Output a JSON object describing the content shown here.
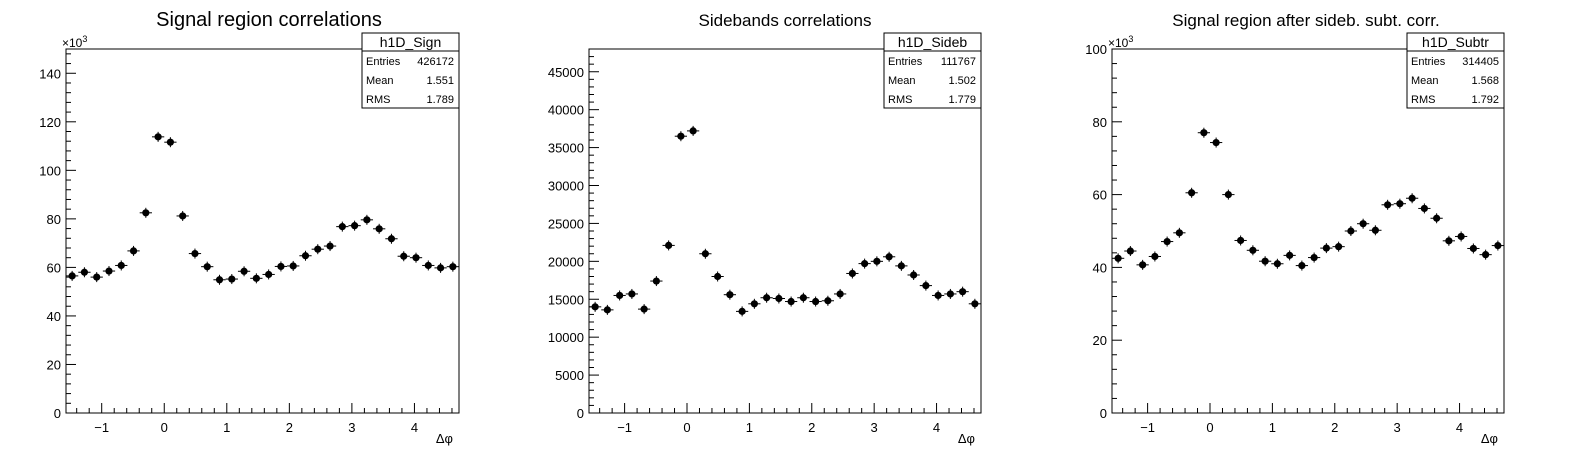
{
  "chart_data": [
    {
      "type": "scatter",
      "title": "Signal region correlations",
      "xlabel": "Δφ",
      "ylabel": "",
      "xlim": [
        -1.5708,
        4.7124
      ],
      "ylim": [
        0,
        150000
      ],
      "x_ticks": [
        -1,
        0,
        1,
        2,
        3,
        4
      ],
      "y_ticks": [
        0,
        20000,
        40000,
        60000,
        80000,
        100000,
        120000,
        140000
      ],
      "y_tick_labels": [
        "0",
        "20",
        "40",
        "60",
        "80",
        "100",
        "120",
        "140"
      ],
      "y_exponent_label": "×10",
      "y_exponent_power": "3",
      "stats": {
        "name": "h1D_Sign",
        "entries_label": "Entries",
        "entries": "426172",
        "mean_label": "Mean",
        "mean": "1.551",
        "rms_label": "RMS",
        "rms": "1.789"
      },
      "series": [
        {
          "values": [
            56500,
            58000,
            56000,
            58500,
            60800,
            66800,
            82500,
            113800,
            111600,
            81200,
            65700,
            60300,
            54900,
            55200,
            58400,
            55500,
            57100,
            60400,
            60600,
            64800,
            67500,
            68800,
            76800,
            77200,
            79600,
            75900,
            71800,
            64600,
            64000,
            60800,
            59800,
            60300
          ]
        }
      ]
    },
    {
      "type": "scatter",
      "title": "Sidebands correlations",
      "xlabel": "Δφ",
      "ylabel": "",
      "xlim": [
        -1.5708,
        4.7124
      ],
      "ylim": [
        0,
        48000
      ],
      "x_ticks": [
        -1,
        0,
        1,
        2,
        3,
        4
      ],
      "y_ticks": [
        0,
        5000,
        10000,
        15000,
        20000,
        25000,
        30000,
        35000,
        40000,
        45000
      ],
      "y_tick_labels": [
        "0",
        "5000",
        "10000",
        "15000",
        "20000",
        "25000",
        "30000",
        "35000",
        "40000",
        "45000"
      ],
      "stats": {
        "name": "h1D_Sideb",
        "entries_label": "Entries",
        "entries": "111767",
        "mean_label": "Mean",
        "mean": "1.502",
        "rms_label": "RMS",
        "rms": "1.779"
      },
      "series": [
        {
          "values": [
            14000,
            13600,
            15500,
            15700,
            13700,
            17400,
            22100,
            36500,
            37200,
            21000,
            18000,
            15600,
            13400,
            14400,
            15200,
            15100,
            14700,
            15200,
            14700,
            14800,
            15700,
            18400,
            19700,
            20000,
            20600,
            19400,
            18200,
            16800,
            15500,
            15700,
            16000,
            14400
          ]
        }
      ]
    },
    {
      "type": "scatter",
      "title": "Signal region after sideb. subt. corr.",
      "xlabel": "Δφ",
      "ylabel": "",
      "xlim": [
        -1.5708,
        4.7124
      ],
      "ylim": [
        0,
        100000
      ],
      "x_ticks": [
        -1,
        0,
        1,
        2,
        3,
        4
      ],
      "y_ticks": [
        0,
        20000,
        40000,
        60000,
        80000,
        100000
      ],
      "y_tick_labels": [
        "0",
        "20",
        "40",
        "60",
        "80",
        "100"
      ],
      "y_exponent_label": "×10",
      "y_exponent_power": "3",
      "stats": {
        "name": "h1D_Subtr",
        "entries_label": "Entries",
        "entries": "314405",
        "mean_label": "Mean",
        "mean": "1.568",
        "rms_label": "RMS",
        "rms": "1.792"
      },
      "series": [
        {
          "values": [
            42500,
            44500,
            40700,
            43000,
            47100,
            49500,
            60500,
            77000,
            74300,
            60000,
            47400,
            44700,
            41700,
            41000,
            43300,
            40500,
            42700,
            45300,
            45700,
            50000,
            52000,
            50200,
            57200,
            57500,
            59000,
            56200,
            53500,
            47300,
            48500,
            45200,
            43500,
            46000
          ]
        }
      ]
    }
  ]
}
